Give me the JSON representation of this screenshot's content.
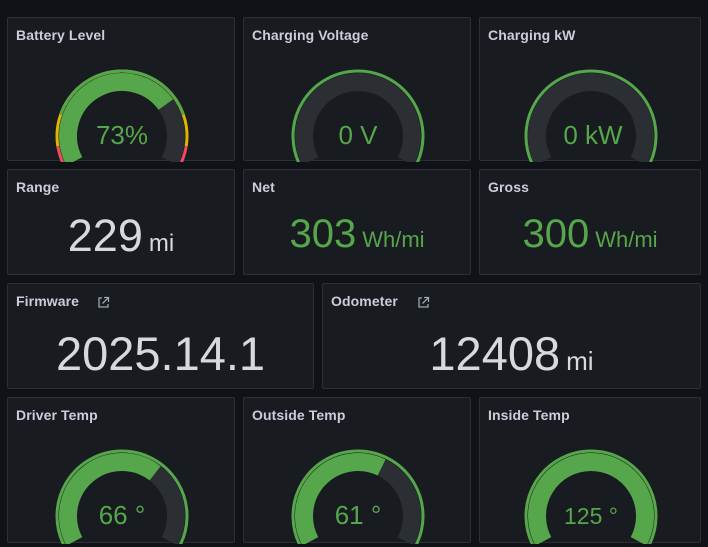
{
  "colors": {
    "background": "#111217",
    "panel": "#181b1f",
    "text": "#d8d9da",
    "green": "#56a64b",
    "track": "#2b2e33",
    "yellow": "#e0b400",
    "red": "#f2495c"
  },
  "panels": {
    "battery": {
      "title": "Battery Level",
      "value": "73%",
      "fill": 0.73,
      "threshold_markers": true
    },
    "charging_voltage": {
      "title": "Charging Voltage",
      "value": "0 V",
      "fill": 0
    },
    "charging_kw": {
      "title": "Charging kW",
      "value": "0 kW",
      "fill": 0
    },
    "range": {
      "title": "Range",
      "value": "229",
      "unit": "mi"
    },
    "net": {
      "title": "Net",
      "value": "303",
      "unit": "Wh/mi"
    },
    "gross": {
      "title": "Gross",
      "value": "300",
      "unit": "Wh/mi"
    },
    "firmware": {
      "title": "Firmware",
      "value": "2025.14.1",
      "link_icon": "external-link-icon"
    },
    "odometer": {
      "title": "Odometer",
      "value": "12408",
      "unit": "mi",
      "link_icon": "external-link-icon"
    },
    "driver_temp": {
      "title": "Driver Temp",
      "value": "66 °",
      "fill": 0.66
    },
    "outside_temp": {
      "title": "Outside Temp",
      "value": "61 °",
      "fill": 0.61
    },
    "inside_temp": {
      "title": "Inside Temp",
      "value": "125 °",
      "fill": 1.0
    }
  }
}
